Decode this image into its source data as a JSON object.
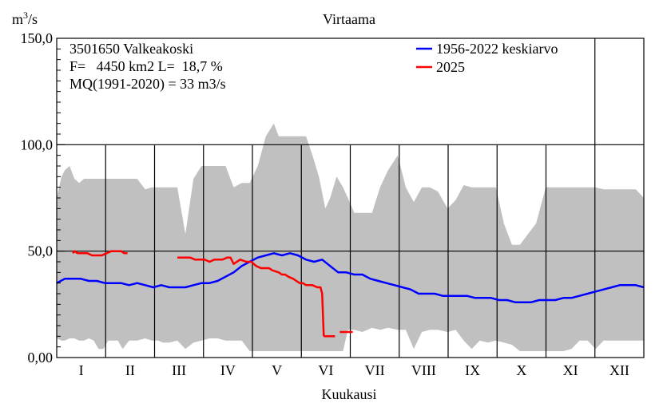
{
  "chart_data": {
    "type": "line",
    "title": "Virtaama",
    "ylabel": "m3/s",
    "ylabel_base": "m",
    "ylabel_sup": "3",
    "ylabel_tail": "/s",
    "xlabel": "Kuukausi",
    "ylim": [
      0,
      150
    ],
    "yticks": [
      0,
      50,
      100,
      150
    ],
    "ytick_labels": [
      "0,00",
      "50,0",
      "100,0",
      "150,0"
    ],
    "xlim": [
      0,
      365
    ],
    "month_labels": [
      "I",
      "II",
      "III",
      "IV",
      "V",
      "VI",
      "VII",
      "VIII",
      "IX",
      "X",
      "XI",
      "XII"
    ],
    "grid": true,
    "legend_position": "top-right",
    "info_lines": [
      "3501650 Valkeakoski",
      "F=   4450 km2 L=  18,7 %",
      "MQ(1991-2020) = 33 m3/s"
    ],
    "range_band": {
      "name": "min-max range",
      "color": "#c0c0c0",
      "x_day": [
        0,
        3,
        5,
        8,
        11,
        14,
        17,
        20,
        23,
        26,
        29,
        32,
        35,
        38,
        41,
        45,
        50,
        55,
        59,
        63,
        66,
        70,
        75,
        80,
        85,
        90,
        95,
        100,
        105,
        110,
        115,
        120,
        125,
        130,
        135,
        138,
        142,
        146,
        151,
        155,
        159,
        163,
        167,
        170,
        174,
        178,
        181,
        185,
        190,
        196,
        201,
        206,
        212,
        217,
        222,
        227,
        232,
        237,
        243,
        248,
        253,
        258,
        263,
        268,
        273,
        278,
        283,
        288,
        293,
        298,
        304,
        310,
        315,
        320,
        325,
        330,
        335,
        340,
        345,
        350,
        355,
        360,
        365
      ],
      "min": [
        9,
        8,
        8,
        9,
        9,
        8,
        8,
        9,
        8,
        4,
        4,
        8,
        8,
        8,
        4,
        8,
        8,
        9,
        8,
        8,
        7,
        7,
        8,
        4,
        7,
        8,
        9,
        9,
        8,
        8,
        8,
        3,
        3,
        3,
        3,
        3,
        3,
        3,
        3,
        3,
        3,
        3,
        3,
        3,
        3,
        3,
        13,
        13,
        12,
        14,
        13,
        14,
        13,
        13,
        4,
        12,
        13,
        13,
        12,
        13,
        8,
        4,
        8,
        7,
        8,
        7,
        6,
        3,
        3,
        3,
        3,
        3,
        3,
        4,
        8,
        8,
        4,
        8,
        8,
        8,
        8,
        8,
        8
      ],
      "max": [
        75,
        85,
        88,
        90,
        84,
        82,
        84,
        84,
        84,
        84,
        84,
        84,
        84,
        84,
        84,
        84,
        84,
        79,
        80,
        80,
        80,
        80,
        80,
        58,
        84,
        90,
        90,
        90,
        90,
        80,
        82,
        82,
        90,
        104,
        110,
        104,
        104,
        104,
        104,
        104,
        95,
        85,
        70,
        75,
        85,
        80,
        75,
        68,
        68,
        68,
        80,
        88,
        95,
        80,
        73,
        80,
        80,
        78,
        70,
        74,
        81,
        80,
        80,
        80,
        80,
        63,
        53,
        53,
        58,
        63,
        80,
        80,
        80,
        80,
        80,
        80,
        80,
        79,
        79,
        79,
        79,
        79,
        75
      ]
    },
    "series": [
      {
        "name": "1956-2022 keskiarvo",
        "color": "#0000ff",
        "x_day": [
          0,
          5,
          10,
          15,
          20,
          25,
          30,
          35,
          40,
          45,
          50,
          55,
          60,
          65,
          70,
          75,
          80,
          85,
          90,
          95,
          100,
          105,
          110,
          115,
          120,
          125,
          130,
          135,
          140,
          145,
          150,
          155,
          160,
          165,
          170,
          175,
          180,
          185,
          190,
          195,
          200,
          205,
          210,
          215,
          220,
          225,
          230,
          235,
          240,
          245,
          250,
          255,
          260,
          265,
          270,
          275,
          280,
          285,
          290,
          295,
          300,
          305,
          310,
          315,
          320,
          325,
          330,
          335,
          340,
          345,
          350,
          355,
          360,
          365
        ],
        "values": [
          35,
          37,
          37,
          37,
          36,
          36,
          35,
          35,
          35,
          34,
          35,
          34,
          33,
          34,
          33,
          33,
          33,
          34,
          35,
          35,
          36,
          38,
          40,
          43,
          45,
          47,
          48,
          49,
          48,
          49,
          48,
          46,
          45,
          46,
          43,
          40,
          40,
          39,
          39,
          37,
          36,
          35,
          34,
          33,
          32,
          30,
          30,
          30,
          29,
          29,
          29,
          29,
          28,
          28,
          28,
          27,
          27,
          26,
          26,
          26,
          27,
          27,
          27,
          28,
          28,
          29,
          30,
          31,
          32,
          33,
          34,
          34,
          34,
          33
        ]
      },
      {
        "name": "2025",
        "color": "#ff0000",
        "segments": [
          {
            "x_day": [
              10,
              11,
              13,
              16,
              19,
              22,
              25,
              28,
              31,
              34,
              37,
              40,
              42,
              44
            ],
            "values": [
              49,
              50,
              49,
              49,
              49,
              48,
              48,
              48,
              49,
              50,
              50,
              50,
              49,
              49
            ]
          },
          {
            "x_day": [
              75,
              77,
              80,
              83,
              86,
              90,
              92,
              95,
              98,
              100,
              103,
              106,
              108,
              110,
              114,
              118,
              121,
              124,
              127,
              130,
              132,
              134,
              138,
              140,
              142,
              144,
              147,
              149,
              151,
              153,
              155,
              157,
              159,
              162,
              164,
              165,
              166
            ],
            "values": [
              47,
              47,
              47,
              47,
              46,
              46,
              46,
              45,
              46,
              46,
              46,
              47,
              47,
              44,
              46,
              45,
              45,
              43,
              42,
              42,
              42,
              41,
              40,
              39,
              39,
              38,
              37,
              36,
              35,
              35,
              34,
              34,
              34,
              33,
              33,
              30,
              10
            ]
          },
          {
            "x_day": [
              166,
              173
            ],
            "values": [
              10,
              10
            ]
          },
          {
            "x_day": [
              176,
              184
            ],
            "values": [
              12,
              12
            ]
          }
        ]
      }
    ]
  }
}
